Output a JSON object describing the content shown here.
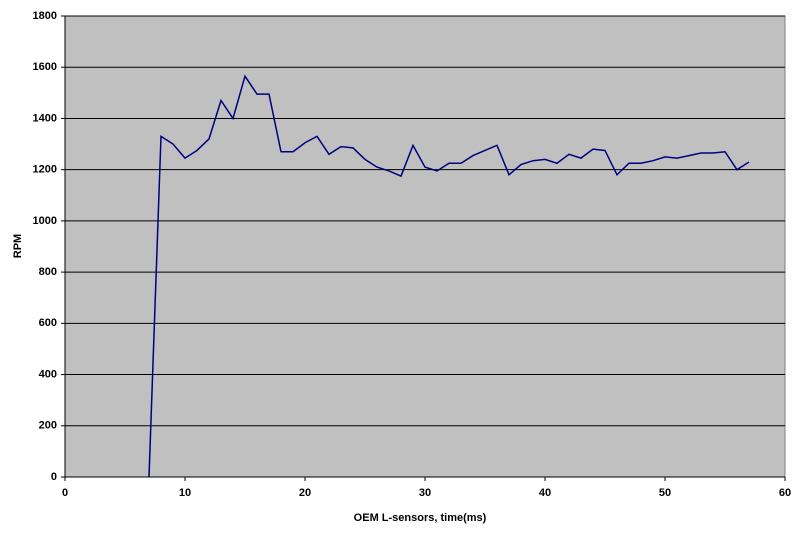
{
  "chart_data": {
    "type": "line",
    "xlabel": "OEM L-sensors, time(ms)",
    "ylabel": "RPM",
    "x": [
      7,
      8,
      9,
      10,
      11,
      12,
      13,
      14,
      15,
      16,
      17,
      18,
      19,
      20,
      21,
      22,
      23,
      24,
      25,
      26,
      27,
      28,
      29,
      30,
      31,
      32,
      33,
      34,
      35,
      36,
      37,
      38,
      39,
      40,
      41,
      42,
      43,
      44,
      45,
      46,
      47,
      48,
      49,
      50,
      51,
      52,
      53,
      54,
      55,
      56,
      57
    ],
    "series": [
      {
        "color": "#000080",
        "values": [
          0,
          1330,
          1300,
          1245,
          1275,
          1320,
          1470,
          1400,
          1565,
          1495,
          1495,
          1270,
          1270,
          1305,
          1330,
          1260,
          1290,
          1285,
          1240,
          1210,
          1195,
          1175,
          1295,
          1210,
          1195,
          1225,
          1225,
          1255,
          1275,
          1295,
          1180,
          1220,
          1235,
          1240,
          1225,
          1260,
          1245,
          1280,
          1275,
          1180,
          1225,
          1225,
          1235,
          1250,
          1245,
          1255,
          1265,
          1265,
          1270,
          1200,
          1230
        ]
      }
    ],
    "xlim": [
      0,
      60
    ],
    "xticks": [
      0,
      10,
      20,
      30,
      40,
      50,
      60
    ],
    "ylim": [
      0,
      1800
    ],
    "yticks": [
      0,
      200,
      400,
      600,
      800,
      1000,
      1200,
      1400,
      1600,
      1800
    ],
    "grid": true,
    "plot_background": "#c0c0c0"
  }
}
